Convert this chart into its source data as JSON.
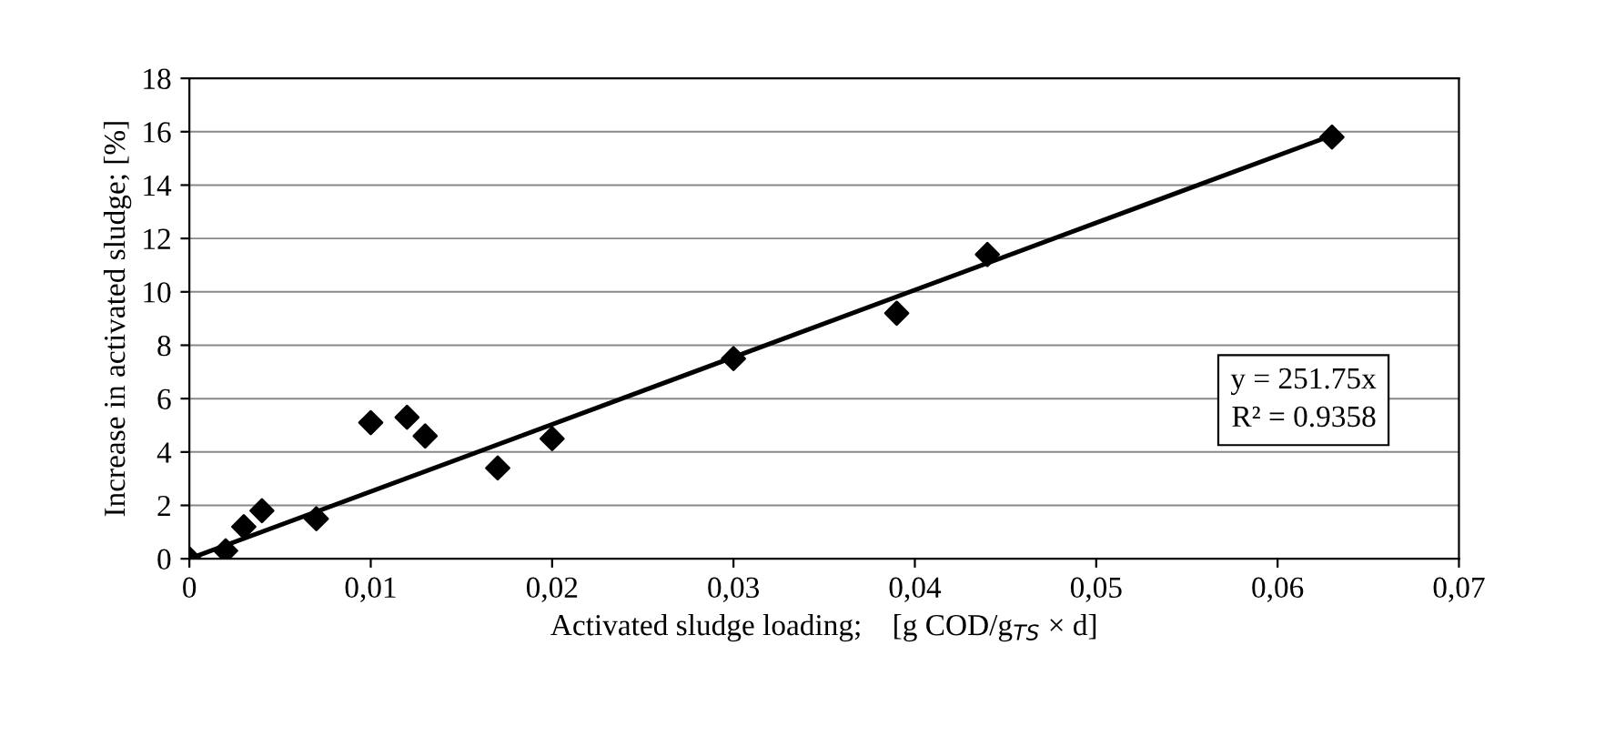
{
  "chart_data": {
    "type": "scatter",
    "xlabel": "Activated sludge loading;    [g COD/g$_{TS}$ × d]",
    "ylabel": "Increase in activated sludge; [%]",
    "x": [
      0,
      0.002,
      0.003,
      0.004,
      0.007,
      0.01,
      0.012,
      0.013,
      0.017,
      0.02,
      0.03,
      0.039,
      0.044,
      0.063
    ],
    "series": [
      {
        "color": "#000000",
        "marker": "diamond",
        "values": [
          0,
          0.3,
          1.2,
          1.8,
          1.5,
          5.1,
          5.3,
          4.6,
          3.4,
          4.5,
          7.5,
          9.2,
          11.4,
          15.8
        ]
      },
      {
        "type": "line",
        "color": "#000000",
        "marker": "none",
        "x": [
          0,
          0.063
        ],
        "values": [
          0,
          15.86
        ]
      }
    ],
    "annotations": [
      "y = 251.75x\nR² = 0.9358"
    ],
    "xlim": [
      0,
      0.07
    ],
    "ylim": [
      0,
      18
    ],
    "xticks": [
      0,
      {
        "value": 0.01,
        "label": "0,01"
      },
      {
        "value": 0.02,
        "label": "0,02"
      },
      {
        "value": 0.03,
        "label": "0,03"
      },
      {
        "value": 0.04,
        "label": "0,04"
      },
      {
        "value": 0.05,
        "label": "0,05"
      },
      {
        "value": 0.06,
        "label": "0,06"
      },
      {
        "value": 0.07,
        "label": "0,07"
      }
    ],
    "yticks": [
      0,
      2,
      4,
      6,
      8,
      10,
      12,
      14,
      16,
      18
    ],
    "grid": "y",
    "legend": false
  }
}
